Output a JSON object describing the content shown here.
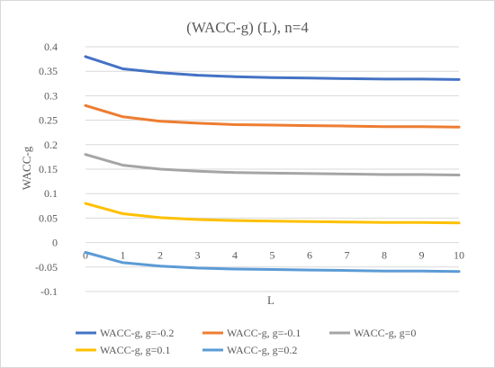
{
  "chart_data": {
    "type": "line",
    "title": "(WACC-g) (L), n=4",
    "xlabel": "L",
    "ylabel": "WACC-g",
    "x": [
      0,
      1,
      2,
      3,
      4,
      5,
      6,
      7,
      8,
      9,
      10
    ],
    "x_tick_labels": [
      "0",
      "1",
      "2",
      "3",
      "4",
      "5",
      "6",
      "7",
      "8",
      "9",
      "10"
    ],
    "ylim": [
      -0.1,
      0.4
    ],
    "y_ticks": [
      0.4,
      0.35,
      0.3,
      0.25,
      0.2,
      0.15,
      0.1,
      0.05,
      0,
      -0.05,
      -0.1
    ],
    "y_tick_labels": [
      "0.4",
      "0.35",
      "0.3",
      "0.25",
      "0.2",
      "0.15",
      "0.1",
      "0.05",
      "0",
      "-0.05",
      "-0.1"
    ],
    "grid": true,
    "legend_position": "bottom",
    "series": [
      {
        "name": "WACC-g, g=-0.2",
        "color": "#4472c4",
        "values": [
          0.38,
          0.355,
          0.347,
          0.342,
          0.339,
          0.337,
          0.336,
          0.335,
          0.334,
          0.334,
          0.333
        ]
      },
      {
        "name": "WACC-g, g=-0.1",
        "color": "#ed7d31",
        "values": [
          0.28,
          0.257,
          0.248,
          0.244,
          0.241,
          0.24,
          0.239,
          0.238,
          0.237,
          0.237,
          0.236
        ]
      },
      {
        "name": "WACC-g, g=0",
        "color": "#a5a5a5",
        "values": [
          0.18,
          0.158,
          0.15,
          0.146,
          0.143,
          0.142,
          0.141,
          0.14,
          0.139,
          0.139,
          0.138
        ]
      },
      {
        "name": "WACC-g, g=0.1",
        "color": "#ffc000",
        "values": [
          0.08,
          0.059,
          0.051,
          0.047,
          0.045,
          0.044,
          0.043,
          0.042,
          0.041,
          0.041,
          0.04
        ]
      },
      {
        "name": "WACC-g, g=0.2",
        "color": "#5b9bd5",
        "values": [
          -0.02,
          -0.041,
          -0.048,
          -0.052,
          -0.054,
          -0.055,
          -0.056,
          -0.057,
          -0.058,
          -0.058,
          -0.059
        ]
      }
    ]
  }
}
